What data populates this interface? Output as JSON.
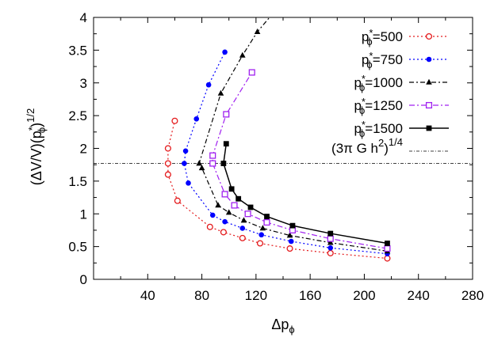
{
  "chart_data": {
    "type": "line",
    "xlabel": "Δp",
    "xlabel_sub": "ϕ",
    "ylabel": "(ΔV/V)(p",
    "ylabel_star": "*",
    "ylabel_sub": "ϕ",
    "ylabel_tail": ")",
    "ylabel_sup": "1/2",
    "xlim": [
      0,
      280
    ],
    "ylim": [
      0,
      4
    ],
    "xticks": [
      40,
      80,
      120,
      160,
      200,
      240,
      280
    ],
    "yticks": [
      0,
      0.5,
      1,
      1.5,
      2,
      2.5,
      3,
      3.5,
      4
    ],
    "xtick_labels": [
      "40",
      "80",
      "120",
      "160",
      "200",
      "240",
      "280"
    ],
    "ytick_labels": [
      "0",
      "0.5",
      "1",
      "1.5",
      "2",
      "2.5",
      "3",
      "3.5",
      "4"
    ],
    "legend_position": "top-right",
    "series": [
      {
        "name": "=500",
        "label_main": "p",
        "label_star": "*",
        "label_sub": "ϕ",
        "label_tail": "=500",
        "color": "#e41a1c",
        "dash": "2,3",
        "marker": "open-circle",
        "x": [
          217,
          175,
          145,
          123,
          110,
          96,
          86,
          62,
          55,
          55,
          55,
          60
        ],
        "y": [
          0.32,
          0.4,
          0.47,
          0.55,
          0.63,
          0.72,
          0.8,
          1.2,
          1.6,
          1.77,
          2.0,
          2.42
        ]
      },
      {
        "name": "=750",
        "label_main": "p",
        "label_star": "*",
        "label_sub": "ϕ",
        "label_tail": "=750",
        "color": "#0000ff",
        "dash": "2,3",
        "marker": "filled-circle",
        "x": [
          217,
          175,
          146,
          124,
          110,
          97,
          88,
          70,
          67,
          68,
          76,
          85,
          97
        ],
        "y": [
          0.39,
          0.48,
          0.58,
          0.68,
          0.78,
          0.88,
          0.98,
          1.47,
          1.77,
          1.96,
          2.45,
          2.97,
          3.47
        ]
      },
      {
        "name": "=1000",
        "label_main": "p",
        "label_star": "*",
        "label_sub": "ϕ",
        "label_tail": "=1000",
        "color": "#000000",
        "dash": "6,3,2,3",
        "marker": "filled-triangle",
        "x": [
          217,
          175,
          145,
          125,
          111,
          100,
          92,
          80,
          78,
          94,
          110,
          121,
          130
        ],
        "y": [
          0.43,
          0.56,
          0.67,
          0.78,
          0.9,
          1.02,
          1.13,
          1.7,
          1.77,
          2.84,
          3.42,
          3.78,
          4.0
        ]
      },
      {
        "name": "=1250",
        "label_main": "p",
        "label_star": "*",
        "label_sub": "ϕ",
        "label_tail": "=1250",
        "color": "#a020f0",
        "dash": "7,3,2,3",
        "marker": "open-square",
        "x": [
          217,
          175,
          147,
          128,
          114,
          104,
          97,
          88,
          88,
          98,
          117
        ],
        "y": [
          0.47,
          0.62,
          0.75,
          0.87,
          1.0,
          1.13,
          1.3,
          1.77,
          1.89,
          2.52,
          3.16
        ]
      },
      {
        "name": "=1500",
        "label_main": "p",
        "label_star": "*",
        "label_sub": "ϕ",
        "label_tail": "=1500",
        "color": "#000000",
        "dash": "",
        "marker": "filled-square",
        "x": [
          217,
          175,
          147,
          128,
          116,
          107,
          102,
          96,
          98
        ],
        "y": [
          0.55,
          0.7,
          0.82,
          0.96,
          1.1,
          1.23,
          1.38,
          1.77,
          2.07
        ]
      }
    ],
    "reference_line": {
      "y": 1.77,
      "color": "#000000",
      "label_main": "(3π G ",
      "label_hbar": "h",
      "label_hbar_sup": "2",
      "label_tail": ")",
      "label_sup": "1/4"
    }
  }
}
